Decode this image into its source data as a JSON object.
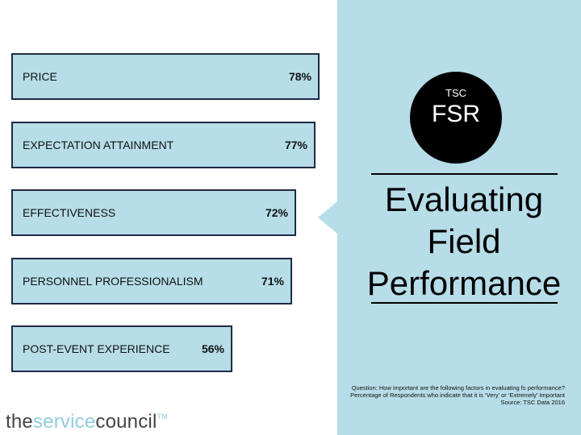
{
  "chart_data": {
    "type": "bar",
    "orientation": "horizontal",
    "categories": [
      "PRICE",
      "EXPECTATION ATTAINMENT",
      "EFFECTIVENESS",
      "PERSONNEL PROFESSIONALISM",
      "POST-EVENT EXPERIENCE"
    ],
    "values": [
      78,
      77,
      72,
      71,
      56
    ],
    "value_labels": [
      "78%",
      "77%",
      "72%",
      "71%",
      "56%"
    ],
    "unit": "%",
    "xlim": [
      0,
      78
    ]
  },
  "badge": {
    "top": "TSC",
    "main": "FSR"
  },
  "title": {
    "line1": "Evaluating",
    "line2": "Field",
    "line3": "Performance"
  },
  "footnote": {
    "line1": "Question: How important are the following factors in evaluating fs performance?",
    "line2": "Percentage of Respondents who indicate that it is ‘Very’ or ‘Extremely’ Important",
    "line3": "Source: TSC Data 2016"
  },
  "logo": {
    "part1": "the",
    "part2": "service",
    "part3": "council",
    "mark": "TM"
  },
  "colors": {
    "panel": "#b6dde8",
    "bar_fill": "#b6dde8",
    "bar_border": "#1f2a44",
    "badge": "#000000"
  }
}
